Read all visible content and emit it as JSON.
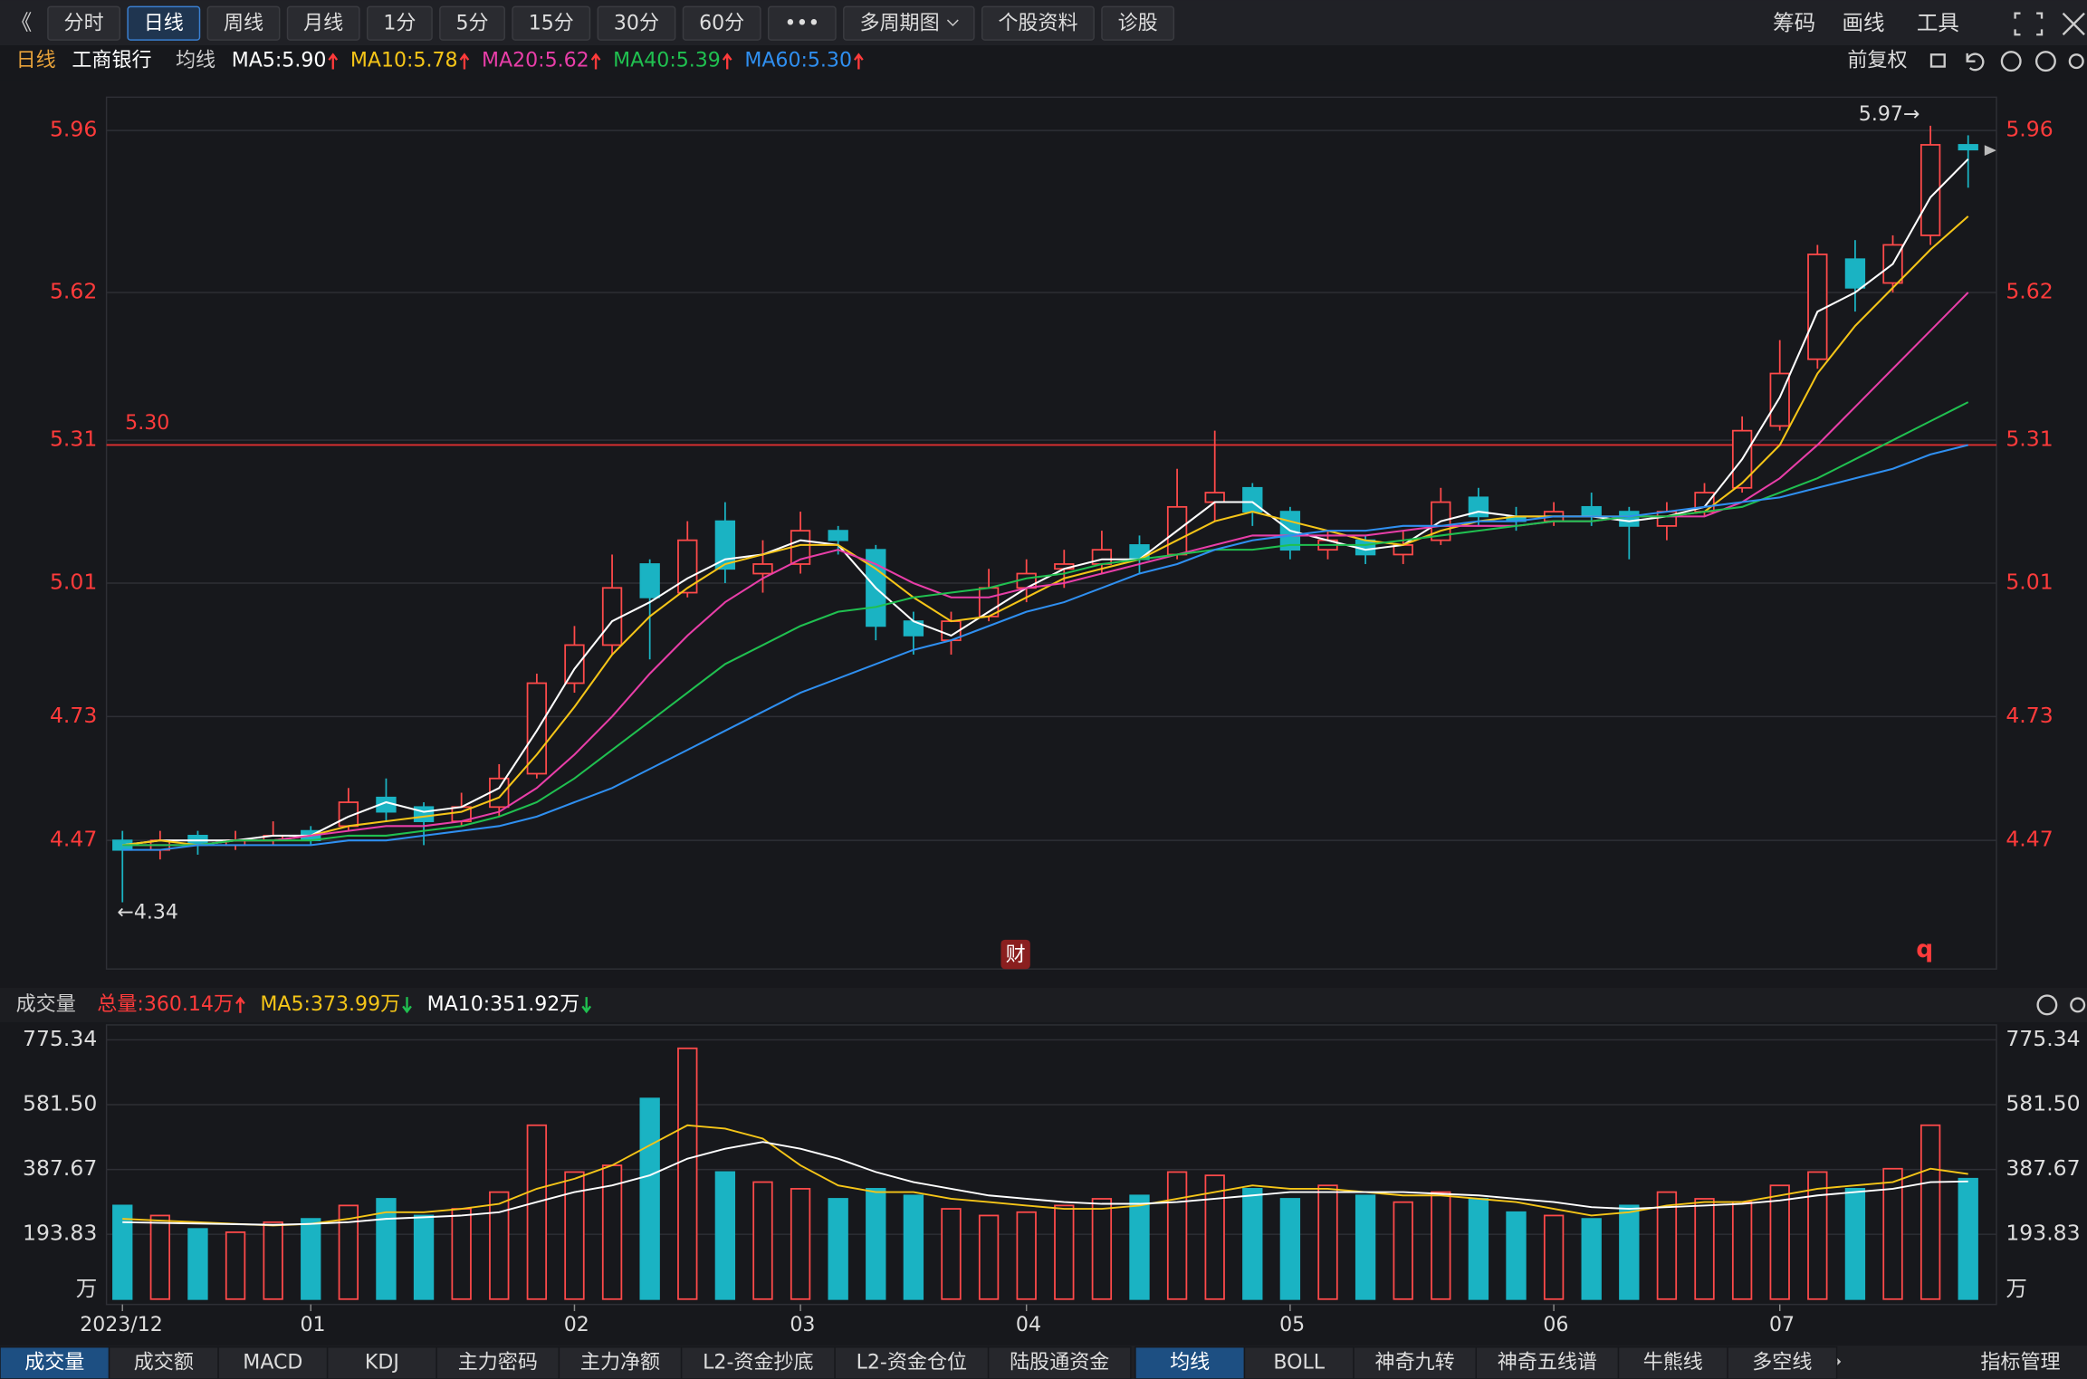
{
  "toolbar": {
    "back": "《",
    "items": [
      "分时",
      "日线",
      "周线",
      "月线",
      "1分",
      "5分",
      "15分",
      "30分",
      "60分",
      "•••",
      "多周期图",
      "个股资料",
      "诊股"
    ],
    "selected": 1,
    "right": [
      "筹码",
      "画线",
      "工具"
    ]
  },
  "info": {
    "period": "日线",
    "stock": "工商银行",
    "ma_title": "均线",
    "adjust": "前复权"
  },
  "chart_data": [
    {
      "type": "candlestick",
      "ylim": [
        4.2,
        6.03
      ],
      "yticks": [
        4.47,
        4.73,
        5.01,
        5.31,
        5.62,
        5.96
      ],
      "grid": true,
      "up_color": "#ff4a4a",
      "down_color": "#1ab3c3",
      "candles": [
        [
          4.47,
          4.45,
          4.34,
          4.49
        ],
        [
          4.45,
          4.47,
          4.43,
          4.49
        ],
        [
          4.48,
          4.46,
          4.44,
          4.49
        ],
        [
          4.46,
          4.47,
          4.45,
          4.49
        ],
        [
          4.47,
          4.48,
          4.46,
          4.51
        ],
        [
          4.49,
          4.47,
          4.46,
          4.5
        ],
        [
          4.5,
          4.55,
          4.49,
          4.58
        ],
        [
          4.56,
          4.53,
          4.51,
          4.6
        ],
        [
          4.54,
          4.51,
          4.46,
          4.55
        ],
        [
          4.51,
          4.54,
          4.5,
          4.57
        ],
        [
          4.54,
          4.6,
          4.52,
          4.63
        ],
        [
          4.61,
          4.8,
          4.6,
          4.82
        ],
        [
          4.8,
          4.88,
          4.78,
          4.92
        ],
        [
          4.88,
          5.0,
          4.86,
          5.07
        ],
        [
          5.05,
          4.98,
          4.85,
          5.06
        ],
        [
          4.99,
          5.1,
          4.98,
          5.14
        ],
        [
          5.14,
          5.04,
          5.01,
          5.18
        ],
        [
          5.03,
          5.05,
          4.99,
          5.1
        ],
        [
          5.05,
          5.12,
          5.03,
          5.16
        ],
        [
          5.12,
          5.1,
          5.07,
          5.13
        ],
        [
          5.08,
          4.92,
          4.89,
          5.09
        ],
        [
          4.93,
          4.9,
          4.86,
          4.95
        ],
        [
          4.89,
          4.93,
          4.86,
          4.95
        ],
        [
          4.94,
          5.0,
          4.93,
          5.04
        ],
        [
          5.0,
          5.03,
          4.97,
          5.06
        ],
        [
          5.04,
          5.05,
          5.0,
          5.08
        ],
        [
          5.05,
          5.08,
          5.03,
          5.12
        ],
        [
          5.09,
          5.06,
          5.03,
          5.11
        ],
        [
          5.07,
          5.17,
          5.06,
          5.25
        ],
        [
          5.18,
          5.2,
          5.14,
          5.33
        ],
        [
          5.21,
          5.16,
          5.13,
          5.22
        ],
        [
          5.16,
          5.08,
          5.06,
          5.17
        ],
        [
          5.08,
          5.1,
          5.06,
          5.12
        ],
        [
          5.1,
          5.07,
          5.05,
          5.11
        ],
        [
          5.07,
          5.09,
          5.05,
          5.12
        ],
        [
          5.1,
          5.18,
          5.09,
          5.21
        ],
        [
          5.19,
          5.15,
          5.13,
          5.21
        ],
        [
          5.15,
          5.14,
          5.12,
          5.17
        ],
        [
          5.14,
          5.16,
          5.13,
          5.18
        ],
        [
          5.17,
          5.15,
          5.13,
          5.2
        ],
        [
          5.16,
          5.13,
          5.06,
          5.17
        ],
        [
          5.13,
          5.16,
          5.1,
          5.18
        ],
        [
          5.16,
          5.2,
          5.15,
          5.22
        ],
        [
          5.21,
          5.33,
          5.2,
          5.36
        ],
        [
          5.34,
          5.45,
          5.33,
          5.52
        ],
        [
          5.48,
          5.7,
          5.46,
          5.72
        ],
        [
          5.69,
          5.63,
          5.58,
          5.73
        ],
        [
          5.64,
          5.72,
          5.62,
          5.74
        ],
        [
          5.74,
          5.93,
          5.72,
          5.97
        ],
        [
          5.93,
          5.92,
          5.84,
          5.95
        ]
      ],
      "series": [
        {
          "name": "MA5:5.90",
          "color": "#ffffff",
          "values": [
            4.46,
            4.47,
            4.47,
            4.47,
            4.48,
            4.48,
            4.52,
            4.55,
            4.53,
            4.54,
            4.58,
            4.7,
            4.83,
            4.93,
            4.97,
            5.02,
            5.06,
            5.07,
            5.1,
            5.09,
            5.0,
            4.93,
            4.9,
            4.95,
            5.0,
            5.04,
            5.06,
            5.06,
            5.12,
            5.18,
            5.18,
            5.12,
            5.1,
            5.08,
            5.09,
            5.14,
            5.16,
            5.15,
            5.15,
            5.15,
            5.14,
            5.15,
            5.17,
            5.27,
            5.4,
            5.58,
            5.62,
            5.68,
            5.82,
            5.9
          ]
        },
        {
          "name": "MA10:5.78",
          "color": "#f5c518",
          "values": [
            4.46,
            4.47,
            4.46,
            4.47,
            4.47,
            4.48,
            4.5,
            4.51,
            4.52,
            4.53,
            4.56,
            4.65,
            4.75,
            4.86,
            4.94,
            5.0,
            5.05,
            5.07,
            5.09,
            5.09,
            5.04,
            4.98,
            4.93,
            4.94,
            4.98,
            5.02,
            5.04,
            5.06,
            5.1,
            5.14,
            5.16,
            5.14,
            5.12,
            5.1,
            5.09,
            5.12,
            5.14,
            5.15,
            5.15,
            5.15,
            5.15,
            5.15,
            5.16,
            5.22,
            5.3,
            5.45,
            5.55,
            5.63,
            5.71,
            5.78
          ]
        },
        {
          "name": "MA20:5.62",
          "color": "#e83ea8",
          "values": [
            4.46,
            4.46,
            4.46,
            4.47,
            4.47,
            4.48,
            4.49,
            4.5,
            4.5,
            4.51,
            4.53,
            4.58,
            4.65,
            4.73,
            4.82,
            4.9,
            4.97,
            5.02,
            5.06,
            5.08,
            5.05,
            5.01,
            4.98,
            4.98,
            5.0,
            5.01,
            5.03,
            5.05,
            5.07,
            5.09,
            5.11,
            5.11,
            5.11,
            5.11,
            5.12,
            5.13,
            5.13,
            5.13,
            5.14,
            5.14,
            5.15,
            5.15,
            5.15,
            5.18,
            5.23,
            5.3,
            5.38,
            5.46,
            5.54,
            5.62
          ]
        },
        {
          "name": "MA40:5.39",
          "color": "#20c050",
          "values": [
            4.46,
            4.46,
            4.46,
            4.47,
            4.47,
            4.47,
            4.48,
            4.48,
            4.49,
            4.5,
            4.52,
            4.55,
            4.6,
            4.66,
            4.72,
            4.78,
            4.84,
            4.88,
            4.92,
            4.95,
            4.96,
            4.98,
            4.99,
            5.0,
            5.02,
            5.03,
            5.05,
            5.06,
            5.07,
            5.08,
            5.08,
            5.09,
            5.09,
            5.09,
            5.1,
            5.11,
            5.12,
            5.13,
            5.14,
            5.14,
            5.15,
            5.15,
            5.16,
            5.17,
            5.2,
            5.23,
            5.27,
            5.31,
            5.35,
            5.39
          ]
        },
        {
          "name": "MA60:5.30",
          "color": "#2f8ff0",
          "values": [
            4.45,
            4.45,
            4.46,
            4.46,
            4.46,
            4.46,
            4.47,
            4.47,
            4.48,
            4.49,
            4.5,
            4.52,
            4.55,
            4.58,
            4.62,
            4.66,
            4.7,
            4.74,
            4.78,
            4.81,
            4.84,
            4.87,
            4.89,
            4.92,
            4.95,
            4.97,
            5.0,
            5.03,
            5.05,
            5.08,
            5.1,
            5.11,
            5.12,
            5.12,
            5.13,
            5.13,
            5.14,
            5.14,
            5.15,
            5.15,
            5.15,
            5.16,
            5.17,
            5.18,
            5.19,
            5.21,
            5.23,
            5.25,
            5.28,
            5.3
          ]
        }
      ],
      "hline": {
        "value": 5.3,
        "label": "5.30",
        "color": "#e03030"
      },
      "high_label": "5.97→",
      "low_label": "←4.34",
      "badge": "财",
      "marker": "q"
    },
    {
      "type": "bar",
      "title": "成交量",
      "total_label": "总量:360.14万",
      "unit": "万",
      "ylim": [
        0,
        820
      ],
      "yticks": [
        193.83,
        387.67,
        {
          "value": 581.5,
          "label": "581.50"
        },
        775.34
      ],
      "grid": true,
      "categories": [
        "2023/12",
        null,
        null,
        null,
        null,
        "01",
        null,
        null,
        null,
        null,
        null,
        null,
        "02",
        null,
        null,
        null,
        null,
        null,
        "03",
        null,
        null,
        null,
        null,
        null,
        "04",
        null,
        null,
        null,
        null,
        null,
        null,
        "05",
        null,
        null,
        null,
        null,
        null,
        null,
        "06",
        null,
        null,
        null,
        null,
        null,
        "07",
        null,
        null,
        null,
        null,
        null
      ],
      "values": [
        280,
        250,
        210,
        200,
        230,
        240,
        280,
        300,
        250,
        270,
        320,
        520,
        380,
        400,
        600,
        750,
        380,
        350,
        330,
        300,
        330,
        310,
        270,
        250,
        260,
        280,
        300,
        310,
        380,
        370,
        330,
        300,
        340,
        310,
        290,
        320,
        300,
        260,
        250,
        240,
        280,
        320,
        300,
        290,
        340,
        380,
        330,
        390,
        520,
        360.14
      ],
      "series": [
        {
          "name": "MA5:373.99万",
          "color": "#f5c518",
          "values": [
            240,
            235,
            230,
            225,
            220,
            225,
            240,
            260,
            260,
            270,
            285,
            330,
            360,
            400,
            460,
            520,
            510,
            480,
            400,
            340,
            320,
            320,
            300,
            290,
            280,
            270,
            270,
            280,
            300,
            320,
            340,
            330,
            330,
            320,
            310,
            310,
            300,
            290,
            270,
            250,
            260,
            280,
            290,
            290,
            310,
            330,
            340,
            350,
            390,
            373.99
          ]
        },
        {
          "name": "MA10:351.92万",
          "color": "#ffffff",
          "values": [
            230,
            228,
            226,
            224,
            222,
            225,
            230,
            240,
            245,
            250,
            260,
            290,
            320,
            340,
            370,
            420,
            450,
            470,
            450,
            420,
            380,
            350,
            330,
            310,
            300,
            290,
            285,
            285,
            290,
            300,
            310,
            320,
            320,
            320,
            320,
            315,
            310,
            300,
            290,
            275,
            270,
            275,
            280,
            285,
            295,
            310,
            320,
            330,
            350,
            351.92
          ]
        }
      ]
    }
  ],
  "tabs": {
    "left": [
      "成交量",
      "成交额",
      "MACD",
      "KDJ",
      "主力密码",
      "主力净额",
      "L2-资金抄底",
      "L2-资金仓位",
      "陆股通资金"
    ],
    "selected": 0,
    "right": [
      "均线",
      "BOLL",
      "神奇九转",
      "神奇五线谱",
      "牛熊线",
      "多空线"
    ],
    "right_selected": 0,
    "manage": "指标管理"
  }
}
